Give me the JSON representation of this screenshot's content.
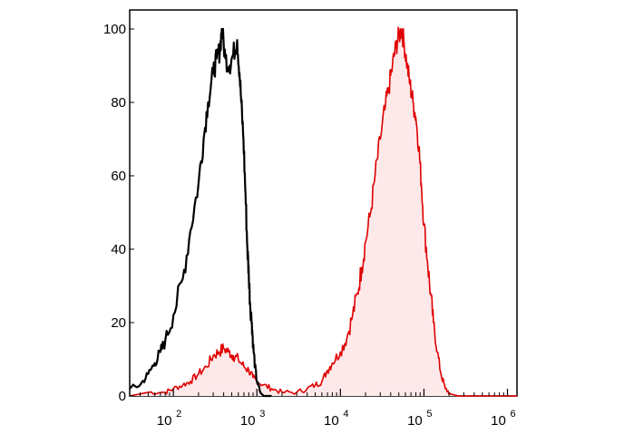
{
  "chart_data": {
    "type": "area",
    "x_scale": "log",
    "xlim": [
      30,
      1300000
    ],
    "ylim": [
      0,
      100
    ],
    "grid": false,
    "legend": "none",
    "x_ticks": [
      {
        "value": 100,
        "base": "10",
        "exp": "2"
      },
      {
        "value": 1000,
        "base": "10",
        "exp": "3"
      },
      {
        "value": 10000,
        "base": "10",
        "exp": "4"
      },
      {
        "value": 100000,
        "base": "10",
        "exp": "5"
      },
      {
        "value": 1000000,
        "base": "10",
        "exp": "6"
      }
    ],
    "y_ticks": [
      "0",
      "20",
      "40",
      "60",
      "80",
      "100"
    ],
    "series": [
      {
        "style": "line",
        "color": "#000000",
        "points": [
          [
            30,
            2
          ],
          [
            40,
            3
          ],
          [
            50,
            6
          ],
          [
            60,
            9
          ],
          [
            70,
            12
          ],
          [
            80,
            15
          ],
          [
            100,
            22
          ],
          [
            130,
            32
          ],
          [
            160,
            45
          ],
          [
            200,
            58
          ],
          [
            230,
            70
          ],
          [
            260,
            80
          ],
          [
            300,
            88
          ],
          [
            330,
            92
          ],
          [
            360,
            94
          ],
          [
            380,
            100
          ],
          [
            420,
            92
          ],
          [
            470,
            90
          ],
          [
            520,
            93
          ],
          [
            580,
            97
          ],
          [
            620,
            88
          ],
          [
            650,
            80
          ],
          [
            690,
            70
          ],
          [
            730,
            55
          ],
          [
            770,
            40
          ],
          [
            800,
            33
          ],
          [
            830,
            25
          ],
          [
            870,
            20
          ],
          [
            900,
            14
          ],
          [
            950,
            8
          ],
          [
            1000,
            4
          ],
          [
            1100,
            1
          ],
          [
            1200,
            0
          ],
          [
            1500,
            0
          ]
        ]
      },
      {
        "style": "filled",
        "color": "#e00000",
        "fill": "#fde9ea",
        "points": [
          [
            30,
            0
          ],
          [
            50,
            1
          ],
          [
            80,
            1
          ],
          [
            100,
            2
          ],
          [
            130,
            3
          ],
          [
            160,
            4
          ],
          [
            200,
            6
          ],
          [
            250,
            8
          ],
          [
            300,
            11
          ],
          [
            350,
            12
          ],
          [
            400,
            13
          ],
          [
            460,
            12
          ],
          [
            520,
            11
          ],
          [
            600,
            10
          ],
          [
            700,
            8
          ],
          [
            800,
            7
          ],
          [
            900,
            5
          ],
          [
            1000,
            4
          ],
          [
            1200,
            3
          ],
          [
            1500,
            2
          ],
          [
            2000,
            1
          ],
          [
            3000,
            1
          ],
          [
            4000,
            2
          ],
          [
            5000,
            3
          ],
          [
            6000,
            4
          ],
          [
            7000,
            7
          ],
          [
            8000,
            9
          ],
          [
            10000,
            12
          ],
          [
            12000,
            16
          ],
          [
            14000,
            22
          ],
          [
            16000,
            28
          ],
          [
            18000,
            35
          ],
          [
            20000,
            42
          ],
          [
            23000,
            50
          ],
          [
            26000,
            60
          ],
          [
            30000,
            70
          ],
          [
            34000,
            78
          ],
          [
            38000,
            84
          ],
          [
            42000,
            90
          ],
          [
            46000,
            95
          ],
          [
            50000,
            98
          ],
          [
            54000,
            100
          ],
          [
            58000,
            96
          ],
          [
            63000,
            90
          ],
          [
            68000,
            85
          ],
          [
            74000,
            80
          ],
          [
            80000,
            76
          ],
          [
            87000,
            68
          ],
          [
            93000,
            58
          ],
          [
            100000,
            47
          ],
          [
            110000,
            37
          ],
          [
            120000,
            28
          ],
          [
            130000,
            20
          ],
          [
            145000,
            12
          ],
          [
            160000,
            6
          ],
          [
            180000,
            2
          ],
          [
            210000,
            0.5
          ],
          [
            260000,
            0
          ],
          [
            1300000,
            0
          ]
        ]
      }
    ]
  }
}
